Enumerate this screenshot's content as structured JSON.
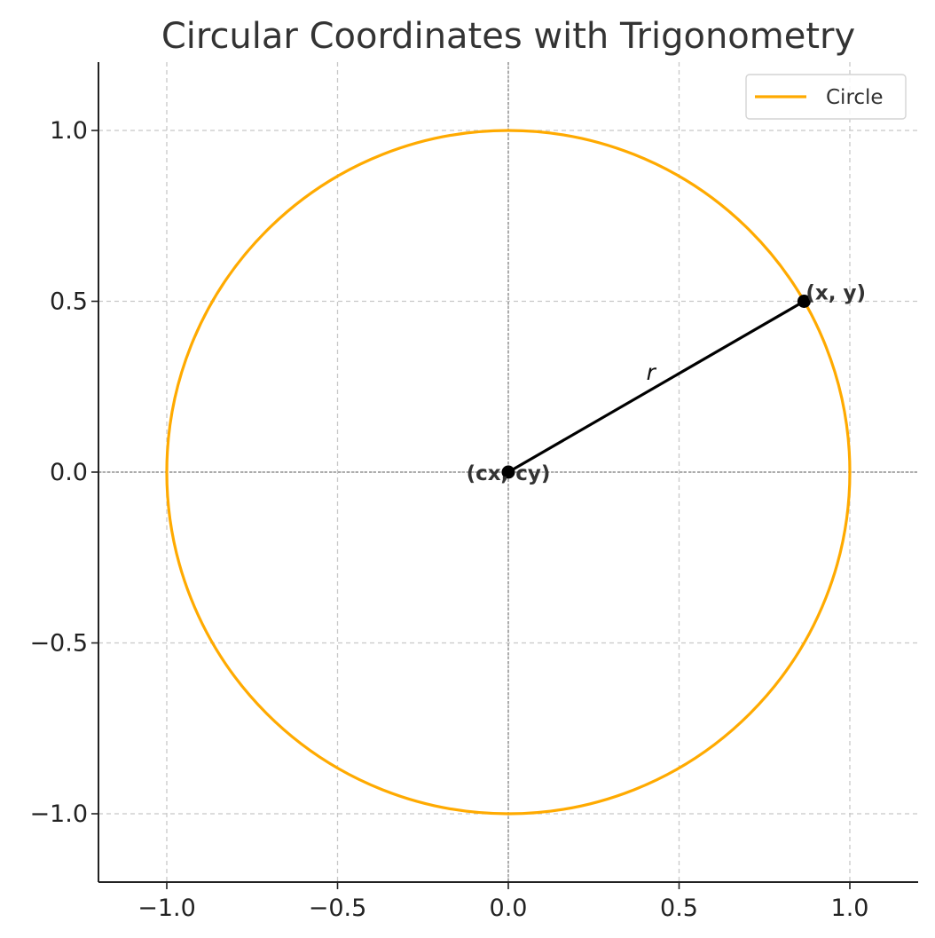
{
  "chart_data": {
    "type": "line",
    "title": "Circular Coordinates with Trigonometry",
    "xlabel": "",
    "ylabel": "",
    "xlim": [
      -1.2,
      1.2
    ],
    "ylim": [
      -1.2,
      1.2
    ],
    "xticks": [
      -1.0,
      -0.5,
      0.0,
      0.5,
      1.0
    ],
    "yticks": [
      -1.0,
      -0.5,
      0.0,
      0.5,
      1.0
    ],
    "xtick_labels": [
      "−1.0",
      "−0.5",
      "0.0",
      "0.5",
      "1.0"
    ],
    "ytick_labels": [
      "−1.0",
      "−0.5",
      "0.0",
      "0.5",
      "1.0"
    ],
    "grid": true,
    "legend_position": "top-right",
    "series": [
      {
        "name": "Circle",
        "shape": "circle",
        "center": [
          0,
          0
        ],
        "radius": 1,
        "color": "#ffaa00"
      }
    ],
    "points": [
      {
        "x": 0,
        "y": 0,
        "label": "(cx, cy)"
      },
      {
        "x": 0.866,
        "y": 0.5,
        "label": "(x, y)"
      }
    ],
    "segment": {
      "from": [
        0,
        0
      ],
      "to": [
        0.866,
        0.5
      ],
      "label": "r",
      "color": "#000000"
    },
    "reference_lines": {
      "x": 0,
      "y": 0,
      "color": "#808080"
    }
  }
}
